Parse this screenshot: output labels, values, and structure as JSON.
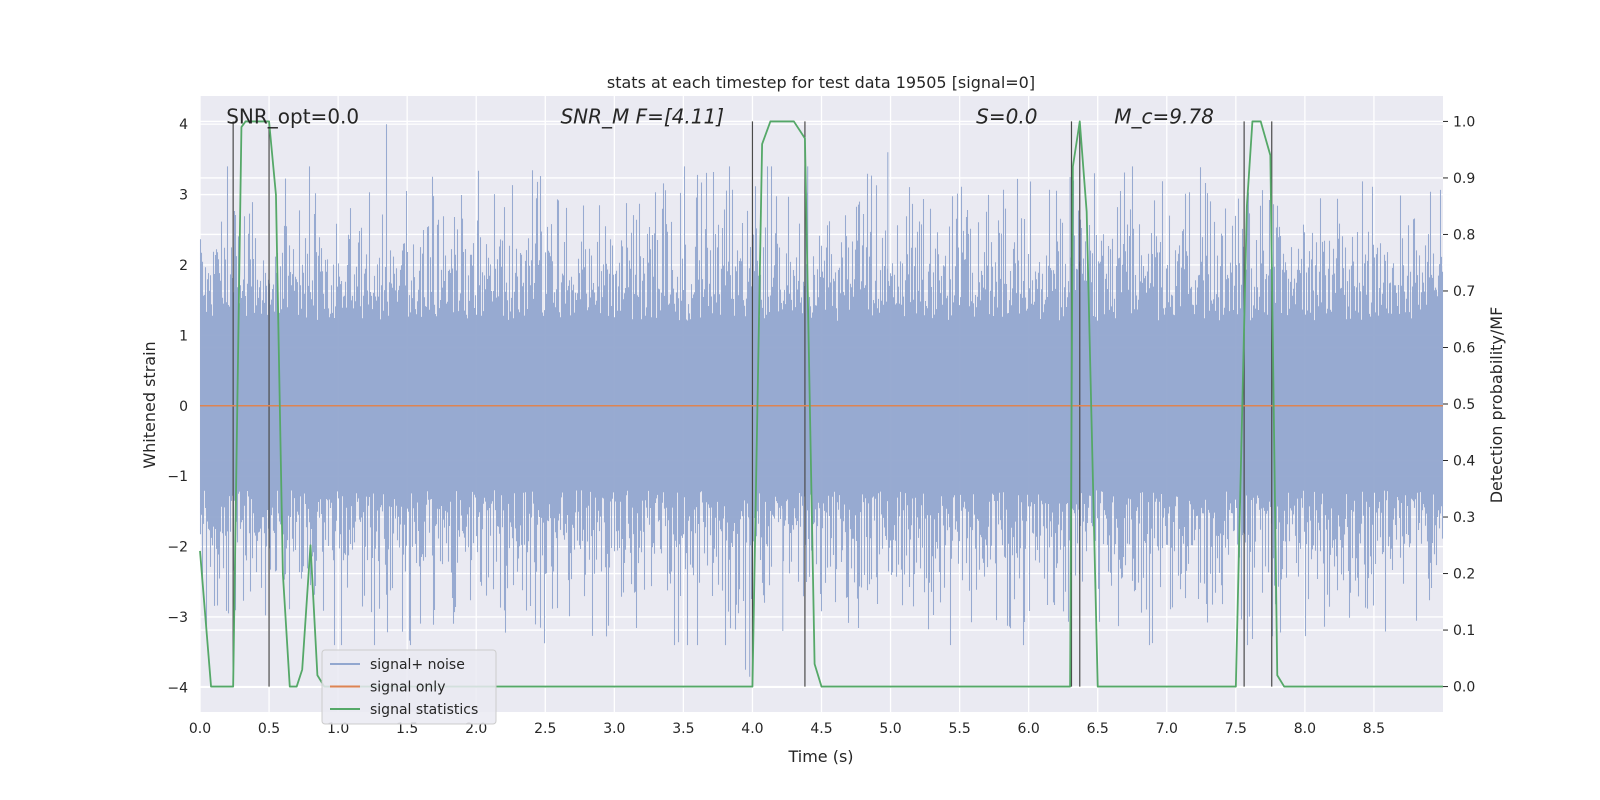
{
  "chart_data": {
    "type": "line",
    "title": "stats at each timestep for test data 19505 [signal=0]",
    "xlabel": "Time (s)",
    "ylabel_left": "Whitened strain",
    "ylabel_right": "Detection probability/MF",
    "xlim": [
      0.0,
      9.0
    ],
    "ylim_left": [
      -4.35,
      4.4
    ],
    "ylim_right": [
      -0.045,
      1.045
    ],
    "x_ticks": [
      "0.0",
      "0.5",
      "1.0",
      "1.5",
      "2.0",
      "2.5",
      "3.0",
      "3.5",
      "4.0",
      "4.5",
      "5.0",
      "5.5",
      "6.0",
      "6.5",
      "7.0",
      "7.5",
      "8.0",
      "8.5"
    ],
    "x_tick_values": [
      0.0,
      0.5,
      1.0,
      1.5,
      2.0,
      2.5,
      3.0,
      3.5,
      4.0,
      4.5,
      5.0,
      5.5,
      6.0,
      6.5,
      7.0,
      7.5,
      8.0,
      8.5
    ],
    "y_left_ticks": [
      "−4",
      "−3",
      "−2",
      "−1",
      "0",
      "1",
      "2",
      "3",
      "4"
    ],
    "y_left_tick_values": [
      -4,
      -3,
      -2,
      -1,
      0,
      1,
      2,
      3,
      4
    ],
    "y_right_ticks": [
      "0.0",
      "0.1",
      "0.2",
      "0.3",
      "0.4",
      "0.5",
      "0.6",
      "0.7",
      "0.8",
      "0.9",
      "1.0"
    ],
    "y_right_tick_values": [
      0.0,
      0.1,
      0.2,
      0.3,
      0.4,
      0.5,
      0.6,
      0.7,
      0.8,
      0.9,
      1.0
    ],
    "grid": true,
    "legend_position": "lower-left",
    "annotations": [
      {
        "name": "snr-opt",
        "text": "SNR_opt=0.0",
        "x": 0.19,
        "y": 4.05,
        "italic": false
      },
      {
        "name": "snr-mf",
        "text": "SNR_M F=[4.11]",
        "x": 2.61,
        "y": 4.05,
        "italic": true
      },
      {
        "name": "s-value",
        "text": "S=0.0",
        "x": 5.62,
        "y": 4.05,
        "italic": true
      },
      {
        "name": "mc-value",
        "text": "M_c=9.78",
        "x": 6.62,
        "y": 4.05,
        "italic": true
      }
    ],
    "vertical_markers": [
      0.24,
      0.5,
      4.0,
      4.38,
      6.31,
      6.37,
      7.56,
      7.76
    ],
    "series": [
      {
        "name": "signal+ noise",
        "color": "#92a7cf",
        "axis": "left",
        "style": "noise",
        "x_range": [
          0.0,
          9.0
        ],
        "typical_abs": 1.6,
        "peak_max": 4.0,
        "peak_min": -3.85
      },
      {
        "name": "signal only",
        "color": "#dd8452",
        "axis": "left",
        "x": [
          0.0,
          9.0
        ],
        "y": [
          0.0,
          0.0
        ]
      },
      {
        "name": "signal statistics",
        "color": "#55a868",
        "axis": "right",
        "x": [
          0.0,
          0.08,
          0.24,
          0.3,
          0.33,
          0.4,
          0.5,
          0.55,
          0.6,
          0.65,
          0.7,
          0.74,
          0.8,
          0.85,
          0.9,
          1.0,
          4.0,
          4.07,
          4.13,
          4.3,
          4.38,
          4.45,
          4.5,
          4.55,
          6.3,
          6.32,
          6.37,
          6.42,
          6.5,
          6.6,
          7.5,
          7.58,
          7.62,
          7.68,
          7.75,
          7.8,
          7.85,
          7.9,
          9.0
        ],
        "y": [
          0.24,
          0.0,
          0.0,
          0.99,
          1.0,
          1.0,
          1.0,
          0.87,
          0.2,
          0.0,
          0.0,
          0.03,
          0.25,
          0.02,
          0.0,
          0.0,
          0.0,
          0.96,
          1.0,
          1.0,
          0.97,
          0.04,
          0.0,
          0.0,
          0.0,
          0.92,
          1.0,
          0.84,
          0.0,
          0.0,
          0.0,
          0.85,
          1.0,
          1.0,
          0.94,
          0.02,
          0.0,
          0.0,
          0.0
        ]
      }
    ]
  }
}
